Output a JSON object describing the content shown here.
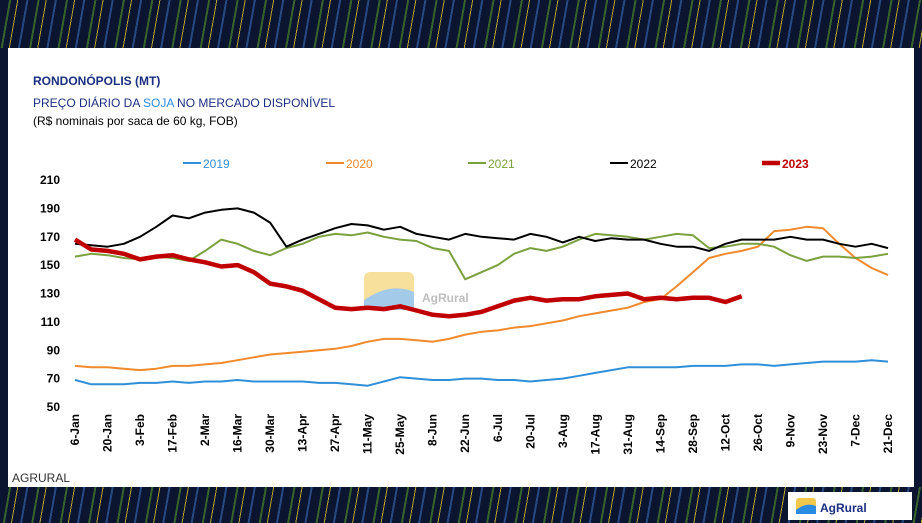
{
  "title": "RONDONÓPOLIS (MT)",
  "subtitle": [
    "PREÇO DIÁRIO DA ",
    "SOJA",
    " NO MERCADO DISPONÍVEL"
  ],
  "note": "(R$ nominais por saca de 60 kg, FOB)",
  "watermark": "AgRural",
  "footer": {
    "source": "AGRURAL",
    "logo": "AgRural"
  },
  "chart_data": {
    "type": "line",
    "legend": "top",
    "grid": false,
    "categories": [
      "6-Jan",
      null,
      "20-Jan",
      null,
      "3-Feb",
      null,
      "17-Feb",
      null,
      "2-Mar",
      null,
      "16-Mar",
      null,
      "30-Mar",
      null,
      "13-Apr",
      null,
      "27-Apr",
      null,
      "11-May",
      null,
      "25-May",
      null,
      "8-Jun",
      null,
      "22-Jun",
      null,
      "6-Jul",
      null,
      "20-Jul",
      null,
      "3-Aug",
      null,
      "17-Aug",
      null,
      "31-Aug",
      null,
      "14-Sep",
      null,
      "28-Sep",
      null,
      "12-Oct",
      null,
      "26-Oct",
      null,
      "9-Nov",
      null,
      "23-Nov",
      null,
      "7-Dec",
      null,
      "21-Dec"
    ],
    "ylim": [
      50,
      210
    ],
    "yticks": [
      50,
      70,
      90,
      110,
      130,
      150,
      170,
      190,
      210
    ],
    "series": [
      {
        "name": "2019",
        "color": "#2f8fd8",
        "width": 2,
        "values": [
          69,
          66,
          66,
          66,
          67,
          67,
          68,
          67,
          68,
          68,
          69,
          68,
          68,
          68,
          68,
          67,
          67,
          66,
          65,
          68,
          71,
          70,
          69,
          69,
          70,
          70,
          69,
          69,
          68,
          69,
          70,
          72,
          74,
          76,
          78,
          78,
          78,
          78,
          79,
          79,
          79,
          80,
          80,
          79,
          80,
          81,
          82,
          82,
          82,
          83,
          82
        ]
      },
      {
        "name": "2020",
        "color": "#f08a2c",
        "width": 2,
        "values": [
          79,
          78,
          78,
          77,
          76,
          77,
          79,
          79,
          80,
          81,
          83,
          85,
          87,
          88,
          89,
          90,
          91,
          93,
          96,
          98,
          98,
          97,
          96,
          98,
          101,
          103,
          104,
          106,
          107,
          109,
          111,
          114,
          116,
          118,
          120,
          124,
          126,
          135,
          145,
          155,
          158,
          160,
          163,
          174,
          175,
          177,
          176,
          165,
          155,
          148,
          143
        ]
      },
      {
        "name": "2021",
        "color": "#7aa13e",
        "width": 2,
        "values": [
          156,
          158,
          157,
          155,
          154,
          156,
          155,
          153,
          160,
          168,
          165,
          160,
          157,
          162,
          165,
          170,
          172,
          171,
          173,
          170,
          168,
          167,
          162,
          160,
          140,
          145,
          150,
          158,
          162,
          160,
          163,
          168,
          172,
          171,
          170,
          168,
          170,
          172,
          171,
          162,
          163,
          165,
          165,
          163,
          157,
          153,
          156,
          156,
          155,
          156,
          158
        ]
      },
      {
        "name": "2022",
        "color": "#000000",
        "width": 2,
        "values": [
          165,
          164,
          163,
          165,
          170,
          177,
          185,
          183,
          187,
          189,
          190,
          187,
          180,
          163,
          168,
          172,
          176,
          179,
          178,
          175,
          177,
          172,
          170,
          168,
          172,
          170,
          169,
          168,
          172,
          170,
          166,
          170,
          167,
          169,
          168,
          168,
          165,
          163,
          163,
          160,
          165,
          168,
          168,
          168,
          170,
          168,
          168,
          165,
          163,
          165,
          162
        ]
      },
      {
        "name": "2023",
        "color": "#c00000",
        "width": 4.5,
        "values": [
          168,
          161,
          160,
          158,
          154,
          156,
          157,
          154,
          152,
          149,
          150,
          145,
          137,
          135,
          132,
          126,
          120,
          119,
          120,
          119,
          121,
          118,
          115,
          114,
          115,
          117,
          121,
          125,
          127,
          125,
          126,
          126,
          128,
          129,
          130,
          126,
          127,
          126,
          127,
          127,
          124,
          128,
          null,
          null,
          null,
          null,
          null,
          null,
          null,
          null,
          null
        ]
      }
    ]
  }
}
